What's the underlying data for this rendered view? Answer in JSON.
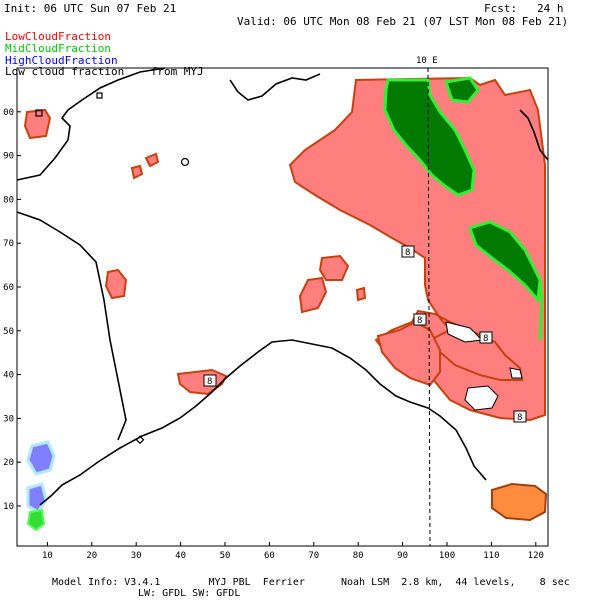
{
  "header": {
    "init": "Init: 06 UTC Sun 07 Feb 21",
    "fcst": "Fcst:   24 h",
    "valid": "Valid: 06 UTC Mon 08 Feb 21 (07 LST Mon 08 Feb 21)"
  },
  "legend": {
    "low": "LowCloudFraction",
    "mid": "MidCloudFraction",
    "high": "HighCloudFraction",
    "source": "Low cloud fraction    from MYJ"
  },
  "colors": {
    "low": "#ff0000",
    "mid": "#00cc00",
    "high": "#0000ff",
    "low_fill": "#ff7f7f",
    "low_edge": "#c84010",
    "mid_fill": "#007a00",
    "mid_edge": "#33ee33",
    "high_fill": "#7f7fff",
    "high_edge": "#b0e8ff",
    "orange_fill": "#ff8c3c"
  },
  "meridian_label": "10 E",
  "x_ticks": [
    "10",
    "20",
    "30",
    "40",
    "50",
    "60",
    "70",
    "80",
    "90",
    "100",
    "110",
    "120"
  ],
  "y_ticks": [
    "10",
    "20",
    "30",
    "40",
    "50",
    "60",
    "70",
    "80",
    "90",
    "00"
  ],
  "box_labels": [
    "8",
    "8",
    "8",
    "8",
    "8"
  ],
  "footer": {
    "model_info": "Model Info: V3.4.1        MYJ PBL  Ferrier      Noah LSM  2.8 km,  44 levels,    8 sec",
    "physics": "LW: GFDL SW: GFDL"
  }
}
